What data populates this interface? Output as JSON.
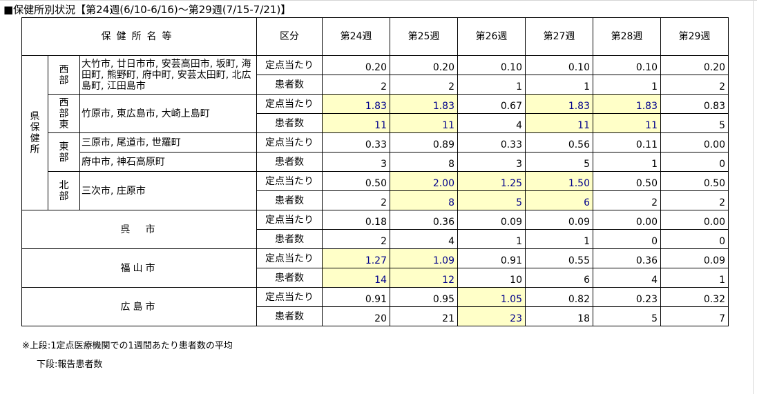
{
  "title": "■保健所別状況【第24週(6/10-6/16)～第29週(7/15-7/21)】",
  "headers": {
    "name": "保健所名等",
    "kubun": "区分",
    "weeks": [
      "第24週",
      "第25週",
      "第26週",
      "第27週",
      "第28週",
      "第29週"
    ]
  },
  "kubun_labels": {
    "rate": "定点当たり",
    "count": "患者数"
  },
  "prefecture_group_label": "県保健所",
  "regions": [
    {
      "name": "西部",
      "cities": "大竹市, 廿日市市, 安芸高田市, 坂町, 海田町, 熊野町, 府中町, 安芸太田町, 北広島町, 江田島市",
      "rate": [
        "0.20",
        "0.20",
        "0.10",
        "0.10",
        "0.10",
        "0.20"
      ],
      "count": [
        "2",
        "2",
        "1",
        "1",
        "1",
        "2"
      ]
    },
    {
      "name": "西部東",
      "cities": "竹原市, 東広島市, 大崎上島町",
      "rate": [
        "1.83",
        "1.83",
        "0.67",
        "1.83",
        "1.83",
        "0.83"
      ],
      "count": [
        "11",
        "11",
        "4",
        "11",
        "11",
        "5"
      ]
    },
    {
      "name": "東部",
      "cities_line1": "三原市, 尾道市, 世羅町",
      "cities_line2": "府中市, 神石高原町",
      "rate": [
        "0.33",
        "0.89",
        "0.33",
        "0.56",
        "0.11",
        "0.00"
      ],
      "count": [
        "3",
        "8",
        "3",
        "5",
        "1",
        "0"
      ]
    },
    {
      "name": "北部",
      "cities": "三次市, 庄原市",
      "rate": [
        "0.50",
        "2.00",
        "1.25",
        "1.50",
        "0.50",
        "0.50"
      ],
      "count": [
        "2",
        "8",
        "5",
        "6",
        "2",
        "2"
      ]
    }
  ],
  "cities": [
    {
      "name": "呉　市",
      "rate": [
        "0.18",
        "0.36",
        "0.09",
        "0.09",
        "0.00",
        "0.00"
      ],
      "count": [
        "2",
        "4",
        "1",
        "1",
        "0",
        "0"
      ]
    },
    {
      "name": "福山市",
      "rate": [
        "1.27",
        "1.09",
        "0.91",
        "0.55",
        "0.36",
        "0.09"
      ],
      "count": [
        "14",
        "12",
        "10",
        "6",
        "4",
        "1"
      ]
    },
    {
      "name": "広島市",
      "rate": [
        "0.91",
        "0.95",
        "1.05",
        "0.82",
        "0.23",
        "0.32"
      ],
      "count": [
        "20",
        "21",
        "23",
        "18",
        "5",
        "7"
      ]
    }
  ],
  "notes": {
    "line1": "※上段:1定点医療機関での1週間あたり患者数の平均",
    "line2": "下段:報告患者数"
  },
  "colors": {
    "highlight_bg": "#ffffc8",
    "highlight_text": "#00008b"
  }
}
